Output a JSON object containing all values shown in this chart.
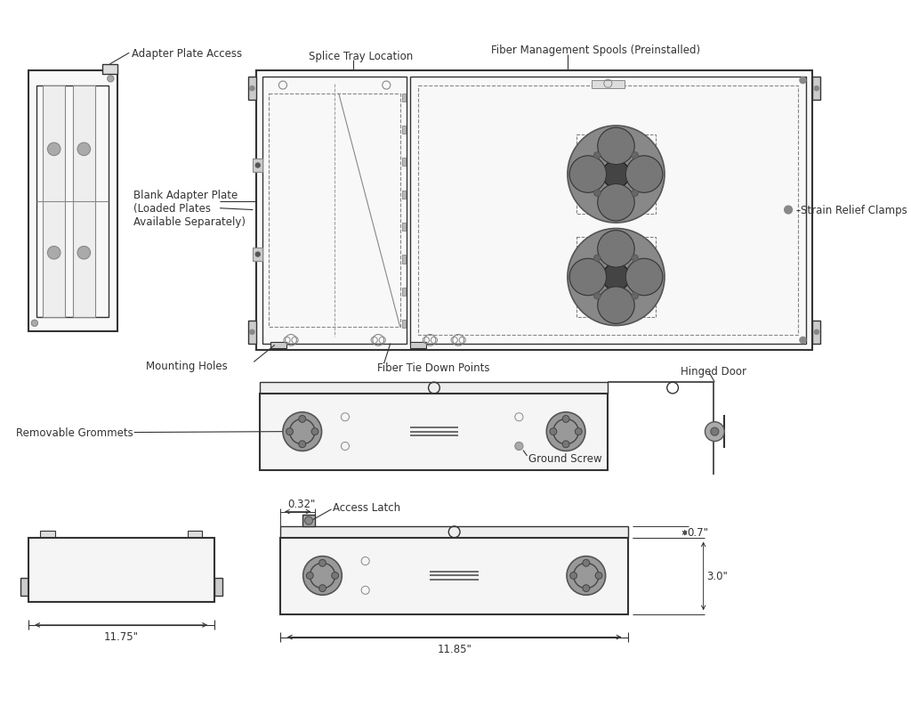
{
  "bg_color": "#ffffff",
  "lc": "#333333",
  "mg": "#888888",
  "dg": "#555555",
  "lg": "#cccccc",
  "sg": "#999999",
  "labels": {
    "adapter_plate_access": "Adapter Plate Access",
    "splice_tray": "Splice Tray Location",
    "fiber_mgmt": "Fiber Management Spools (Preinstalled)",
    "blank_adapter": "Blank Adapter Plate\n(Loaded Plates\nAvailable Separately)",
    "strain_relief": "Strain Relief Clamps",
    "mounting_holes": "Mounting Holes",
    "fiber_tie": "Fiber Tie Down Points",
    "hinged_door": "Hinged Door",
    "removable_grommets": "Removable Grommets",
    "ground_screw": "Ground Screw",
    "access_latch": "Access Latch",
    "dim_032": "0.32\"",
    "dim_07": "0.7\"",
    "dim_30": "3.0\"",
    "dim_1175": "11.75\"",
    "dim_1185": "11.85\""
  }
}
